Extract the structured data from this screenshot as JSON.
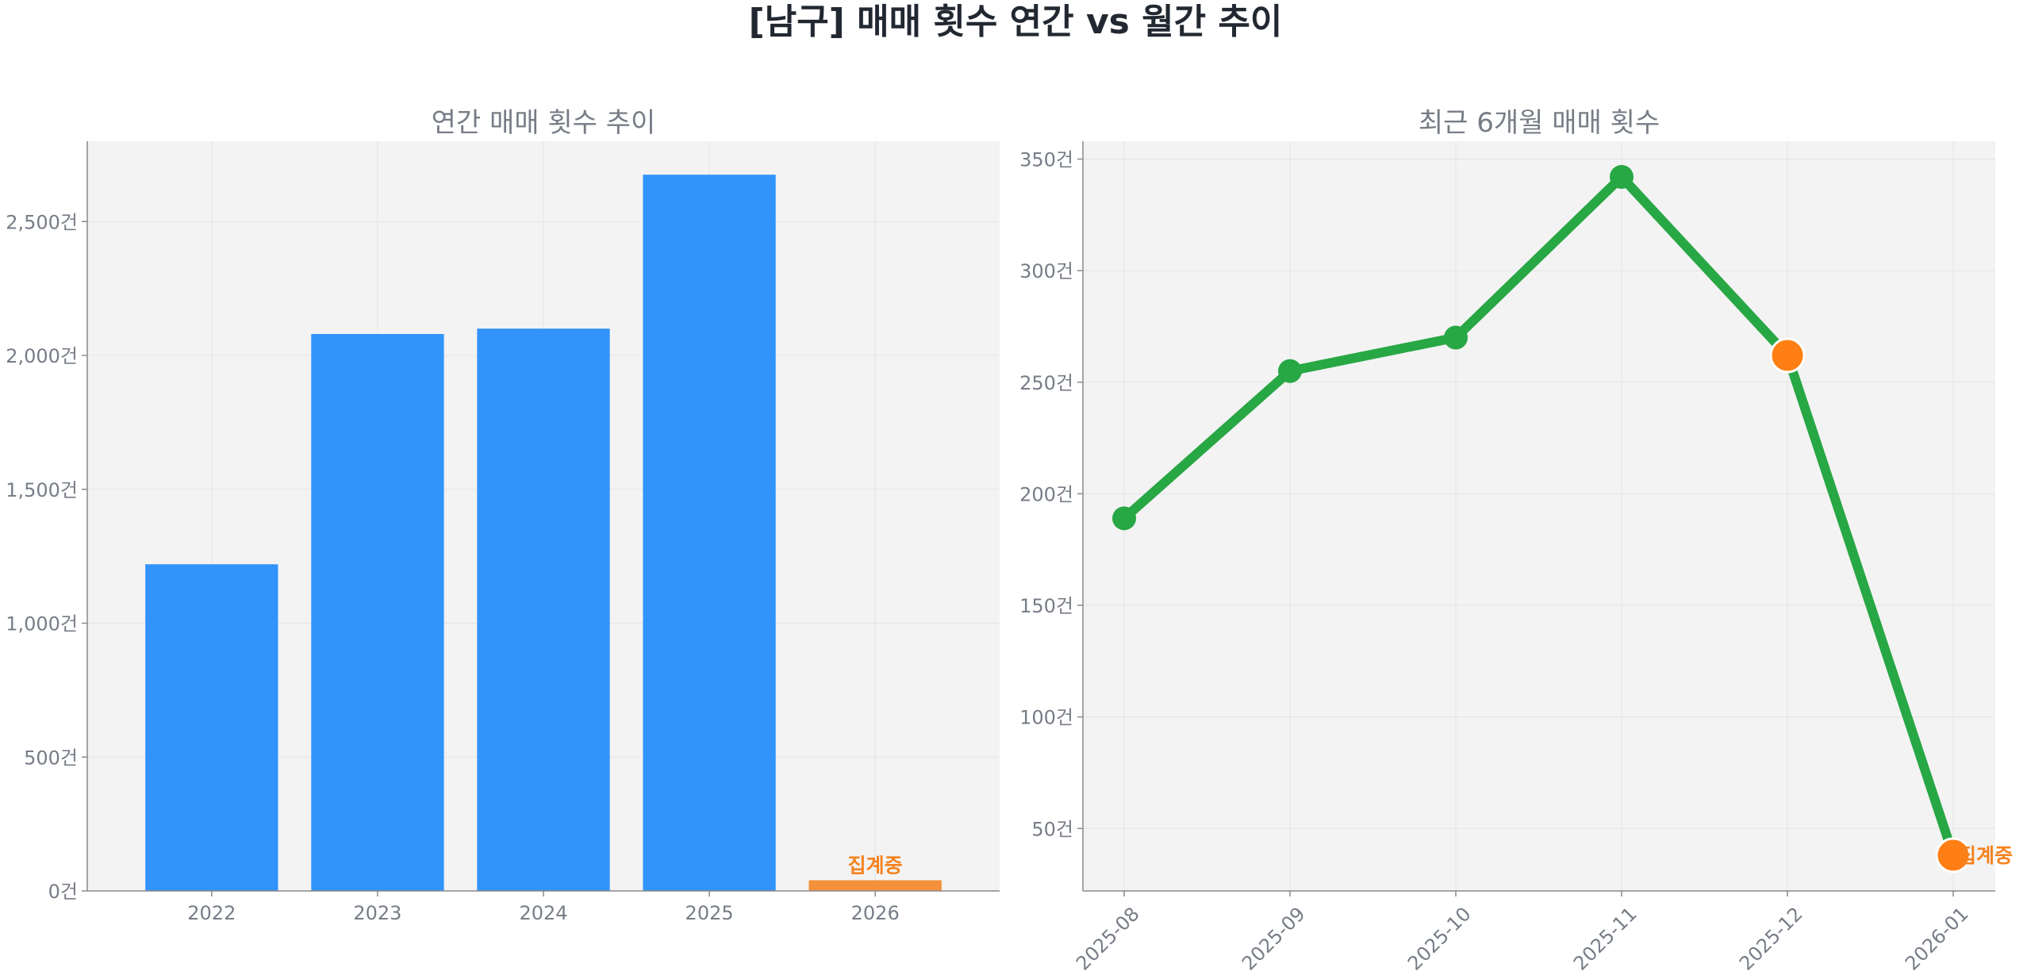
{
  "figure_title": "[남구] 매매 횟수 연간 vs 월간 추이",
  "colors": {
    "bar": "#3193fb",
    "bar_pending": "#f5913a",
    "line": "#28a745",
    "marker_highlight": "#ff7f14",
    "pending_label": "#f5821e",
    "plot_bg": "#f3f3f3",
    "grid": "#e4e4e4",
    "axis_text": "#777d87",
    "title_text": "#222831"
  },
  "chart_data": [
    {
      "type": "bar",
      "title": "연간 매매 횟수 추이",
      "categories": [
        "2022",
        "2023",
        "2024",
        "2025",
        "2026"
      ],
      "values": [
        1220,
        2080,
        2100,
        2675,
        40
      ],
      "pending_index": 4,
      "pending_label": "집계중",
      "ylim": [
        0,
        2800
      ],
      "yticks": [
        0,
        500,
        1000,
        1500,
        2000,
        2500
      ],
      "ytick_labels": [
        "0건",
        "500건",
        "1,000건",
        "1,500건",
        "2,000건",
        "2,500건"
      ],
      "grid": true
    },
    {
      "type": "line",
      "title": "최근 6개월 매매 횟수",
      "categories": [
        "2025-08",
        "2025-09",
        "2025-10",
        "2025-11",
        "2025-12",
        "2026-01"
      ],
      "values": [
        189,
        255,
        270,
        342,
        262,
        38
      ],
      "highlight_indices": [
        4,
        5
      ],
      "pending_index": 5,
      "pending_label": "집계중",
      "ylim": [
        22,
        358
      ],
      "yticks": [
        50,
        100,
        150,
        200,
        250,
        300,
        350
      ],
      "ytick_labels": [
        "50건",
        "100건",
        "150건",
        "200건",
        "250건",
        "300건",
        "350건"
      ],
      "grid": true
    }
  ]
}
